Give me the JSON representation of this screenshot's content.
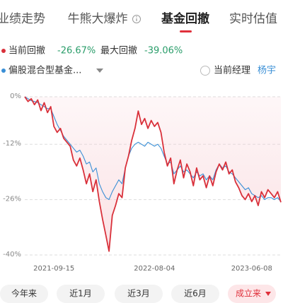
{
  "tabs": [
    "业绩走势",
    "牛熊大爆炸",
    "基金回撤",
    "实时估值"
  ],
  "active_tab": 2,
  "summary": {
    "current_label": "当前回撤",
    "current_value": "-26.67%",
    "max_label": "最大回撤",
    "max_value": "-39.06%"
  },
  "manager": {
    "label": "当前经理",
    "name": "杨宇"
  },
  "range_buttons": [
    "今年来",
    "近1月",
    "近3月",
    "近6月",
    "成立来"
  ],
  "active_range": 4,
  "chart_data": {
    "type": "line",
    "categories": [
      null,
      null,
      null,
      null,
      null,
      null,
      null,
      null,
      null,
      "2021-09-15",
      null,
      null,
      null,
      null,
      null,
      null,
      null,
      null,
      null,
      null,
      null,
      null,
      null,
      null,
      null,
      null,
      null,
      null,
      null,
      null,
      null,
      null,
      null,
      null,
      null,
      null,
      null,
      null,
      null,
      null,
      "2022-08-04",
      null,
      null,
      null,
      null,
      null,
      null,
      null,
      null,
      null,
      null,
      null,
      null,
      null,
      null,
      null,
      null,
      null,
      null,
      null,
      null,
      null,
      null,
      null,
      null,
      null,
      null,
      null,
      null,
      null,
      "2023-06-08",
      null,
      null,
      null,
      null,
      null,
      null,
      null,
      null,
      null
    ],
    "series": [
      {
        "name": "当前回撤",
        "color": "#d9303a",
        "values": [
          0,
          -1.2,
          -0.5,
          -2.0,
          -0.8,
          -3.5,
          -1.5,
          -4.0,
          -2.5,
          -7.5,
          -9.0,
          -8.0,
          -10.5,
          -11.5,
          -12.5,
          -16.0,
          -17.5,
          -15.5,
          -18.5,
          -22.0,
          -19.5,
          -24.0,
          -21.0,
          -26.5,
          -31.0,
          -35.0,
          -39.06,
          -30.0,
          -27.5,
          -24.5,
          -25.5,
          -18.0,
          -15.0,
          -11.0,
          -8.0,
          -3.6,
          -7.0,
          -5.5,
          -8.0,
          -6.0,
          -7.5,
          -6.5,
          -9.0,
          -14.0,
          -17.5,
          -15.5,
          -22.0,
          -18.5,
          -16.0,
          -20.5,
          -17.0,
          -19.0,
          -22.5,
          -18.0,
          -21.0,
          -20.0,
          -23.0,
          -20.0,
          -22.5,
          -19.0,
          -17.0,
          -18.5,
          -16.5,
          -19.5,
          -18.5,
          -21.5,
          -23.0,
          -25.0,
          -26.0,
          -24.5,
          -26.5,
          -25.0,
          -27.5,
          -24.0,
          -25.5,
          -23.5,
          -24.5,
          -25.5,
          -24.0,
          -26.67
        ]
      },
      {
        "name": "偏股混合型基金...",
        "color": "#3a8fd6",
        "values": [
          0,
          -0.5,
          -1,
          -1.2,
          -1.5,
          -2,
          -2.5,
          -3,
          -3,
          -5,
          -7,
          -8.5,
          -10,
          -11,
          -12,
          -13,
          -14,
          -13.5,
          -15,
          -17,
          -16.5,
          -19,
          -18,
          -22,
          -24,
          -25.5,
          -26,
          -24,
          -22.5,
          -21,
          -22,
          -18,
          -15,
          -13,
          -12,
          -11.5,
          -12,
          -12.5,
          -11.5,
          -12,
          -12.5,
          -12,
          -13,
          -15,
          -17,
          -16.5,
          -19.5,
          -18.5,
          -17.5,
          -19,
          -18.5,
          -19.5,
          -20.5,
          -19,
          -20,
          -19.5,
          -21,
          -20,
          -21,
          -18.5,
          -17,
          -18,
          -17.5,
          -19,
          -19.5,
          -20.5,
          -21.5,
          -22.5,
          -23.5,
          -23,
          -24.5,
          -25,
          -25.5,
          -25,
          -26,
          -25.5,
          -25.5,
          -26,
          -25.5,
          -26.5
        ]
      }
    ],
    "area_color": "#f7c9cf",
    "ylim": [
      -40,
      0
    ],
    "yticks": [
      {
        "value": 0,
        "label": "0%"
      },
      {
        "value": -12,
        "label": "-12%"
      },
      {
        "value": -26,
        "label": "-26%"
      },
      {
        "value": -40,
        "label": "-40%"
      }
    ],
    "grid": true
  }
}
